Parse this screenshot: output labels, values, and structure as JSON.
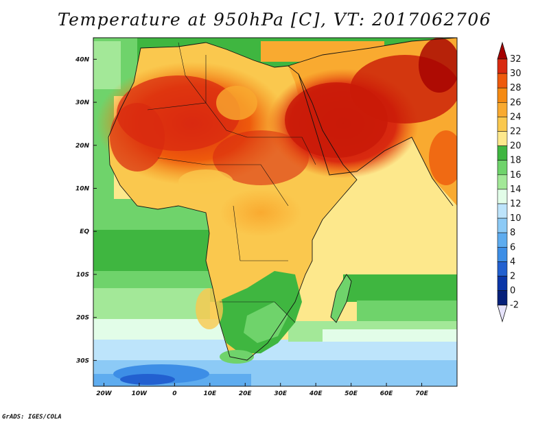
{
  "title": "Temperature at 950hPa [C], VT: 2017062706",
  "footer": "GrADS: IGES/COLA",
  "map": {
    "lon_range": [
      -23,
      80
    ],
    "lat_range": [
      -36,
      45
    ],
    "x_ticks": [
      "20W",
      "10W",
      "0",
      "10E",
      "20E",
      "30E",
      "40E",
      "50E",
      "60E",
      "70E"
    ],
    "y_ticks": [
      "40N",
      "30N",
      "20N",
      "10N",
      "EQ",
      "10S",
      "20S",
      "30S"
    ]
  },
  "colorbar": {
    "levels": [
      "32",
      "30",
      "28",
      "26",
      "24",
      "22",
      "20",
      "18",
      "16",
      "14",
      "12",
      "10",
      "8",
      "6",
      "4",
      "2",
      "0",
      "-2"
    ],
    "colors": [
      "#a50000",
      "#d92a10",
      "#ee5a0c",
      "#f58a12",
      "#f9aa30",
      "#fac84e",
      "#fde88c",
      "#3fb640",
      "#6fd36b",
      "#a3e898",
      "#e2fde8",
      "#bde4fb",
      "#8ccaf6",
      "#5eacef",
      "#3d8ee6",
      "#2260d0",
      "#0a36a8",
      "#06207a",
      "#e6e3fb"
    ]
  }
}
